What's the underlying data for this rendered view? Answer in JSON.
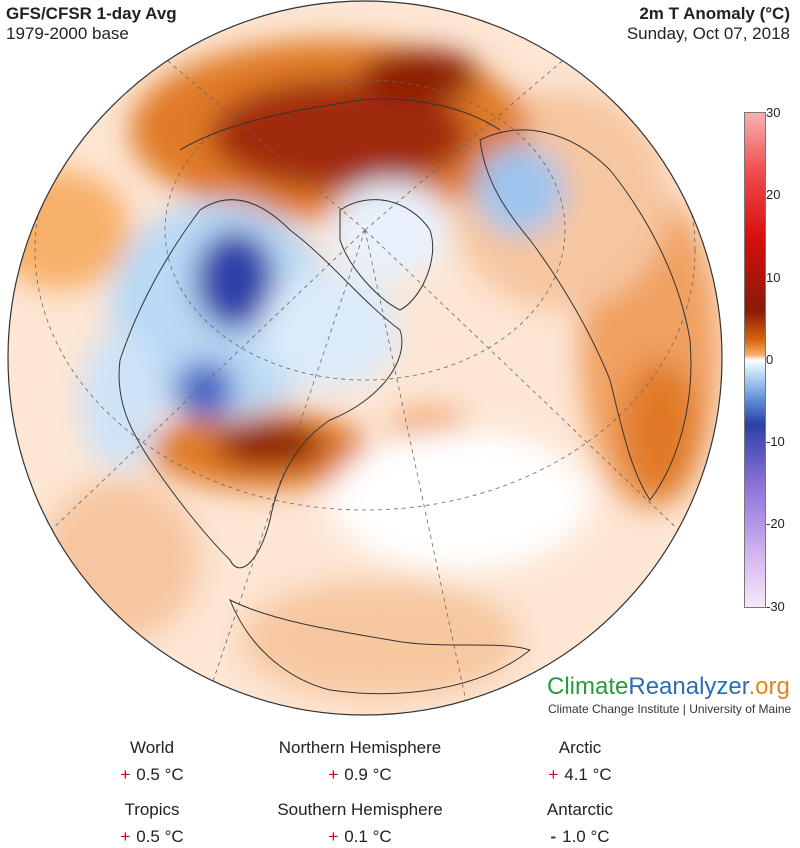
{
  "header": {
    "title": "GFS/CFSR 1-day Avg",
    "subtitle": "1979-2000 base",
    "variable": "2m T Anomaly (°C)",
    "date": "Sunday, Oct 07, 2018"
  },
  "colorbar": {
    "ticks": [
      "30",
      "20",
      "10",
      "0",
      "-10",
      "-20",
      "-30"
    ]
  },
  "brand": {
    "part1": "Climate",
    "part2": "Reanalyzer",
    "part3": ".org",
    "sub": "Climate Change Institute | University of Maine"
  },
  "stats": [
    {
      "label": "World",
      "sign": "+",
      "value": "0.5 °C"
    },
    {
      "label": "Northern Hemisphere",
      "sign": "+",
      "value": "0.9 °C"
    },
    {
      "label": "Arctic",
      "sign": "+",
      "value": "4.1 °C"
    },
    {
      "label": "Tropics",
      "sign": "+",
      "value": "0.5 °C"
    },
    {
      "label": "Southern Hemisphere",
      "sign": "+",
      "value": "0.1 °C"
    },
    {
      "label": "Antarctic",
      "sign": "-",
      "value": "1.0 °C"
    }
  ],
  "colors": {
    "warm": "#d8650f",
    "hot": "#8a1a06",
    "cold": "#2d3fa8",
    "cool": "#b9d9f5",
    "positive_sign": "#d00000",
    "negative_sign": "#1a2fa8"
  }
}
